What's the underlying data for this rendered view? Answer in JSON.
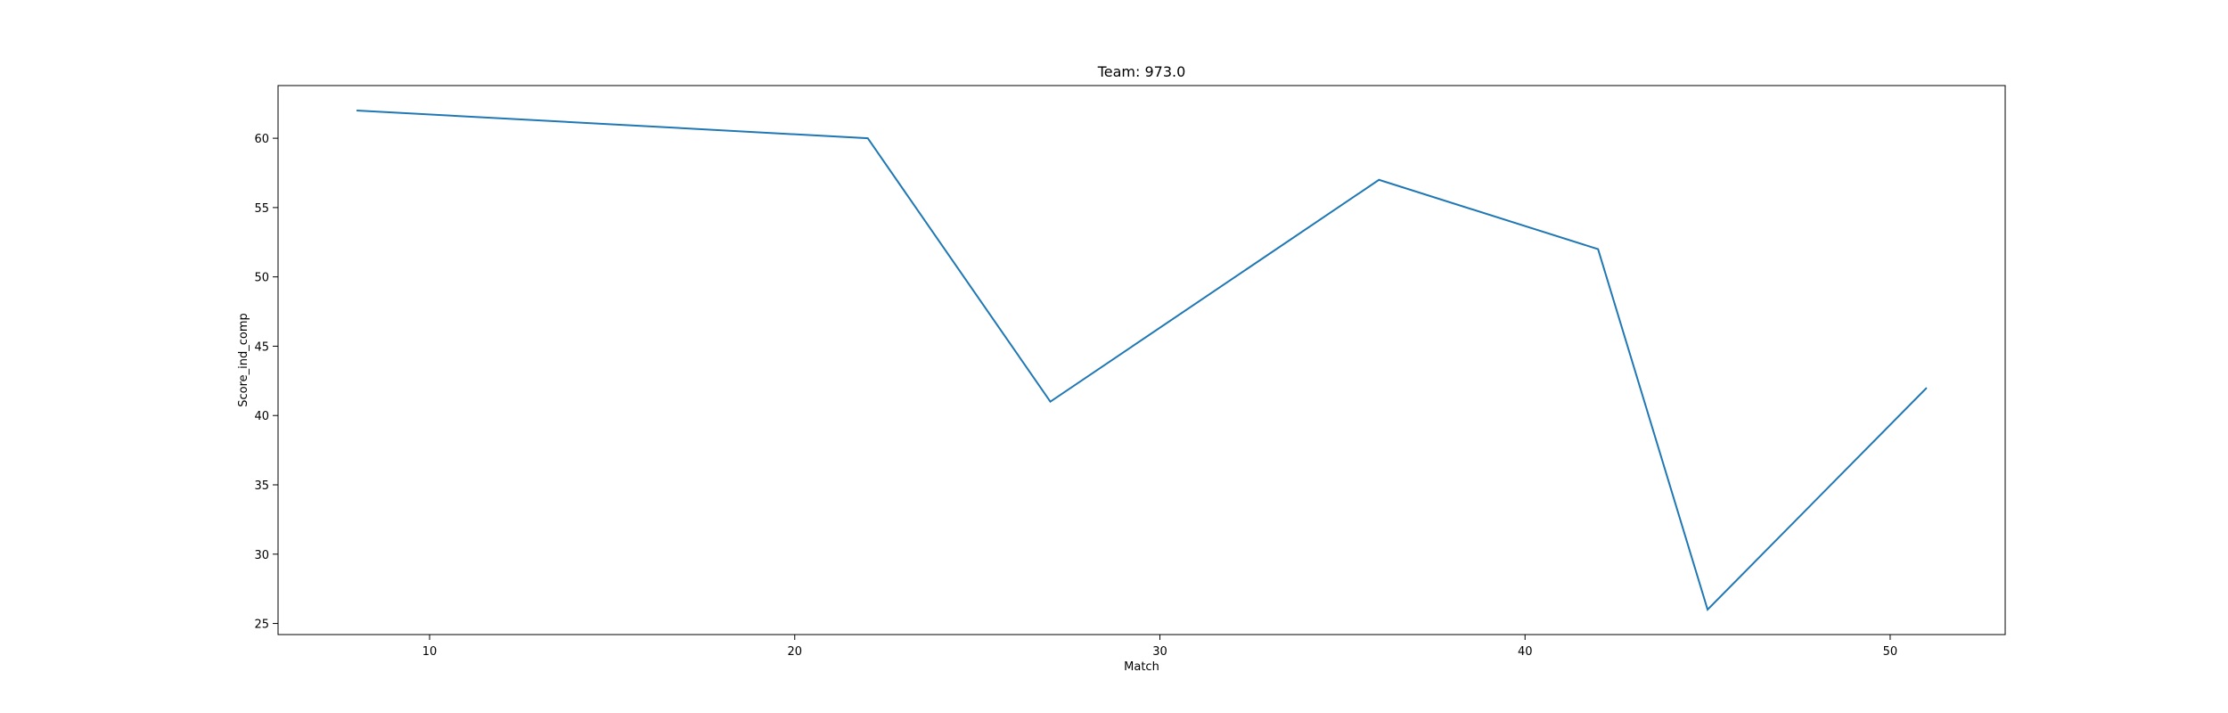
{
  "chart_data": {
    "type": "line",
    "title": "Team: 973.0",
    "xlabel": "Match",
    "ylabel": "Score_ind_comp",
    "xlim": [
      5.85,
      53.15
    ],
    "ylim": [
      24.2,
      63.8
    ],
    "xticks": [
      10,
      20,
      30,
      40,
      50
    ],
    "yticks": [
      25,
      30,
      35,
      40,
      45,
      50,
      55,
      60
    ],
    "grid": false,
    "series": [
      {
        "color": "#1f77b4",
        "x": [
          8,
          22,
          27,
          36,
          42,
          45,
          51
        ],
        "y": [
          62,
          60,
          41,
          57,
          52,
          26,
          42
        ]
      }
    ]
  }
}
